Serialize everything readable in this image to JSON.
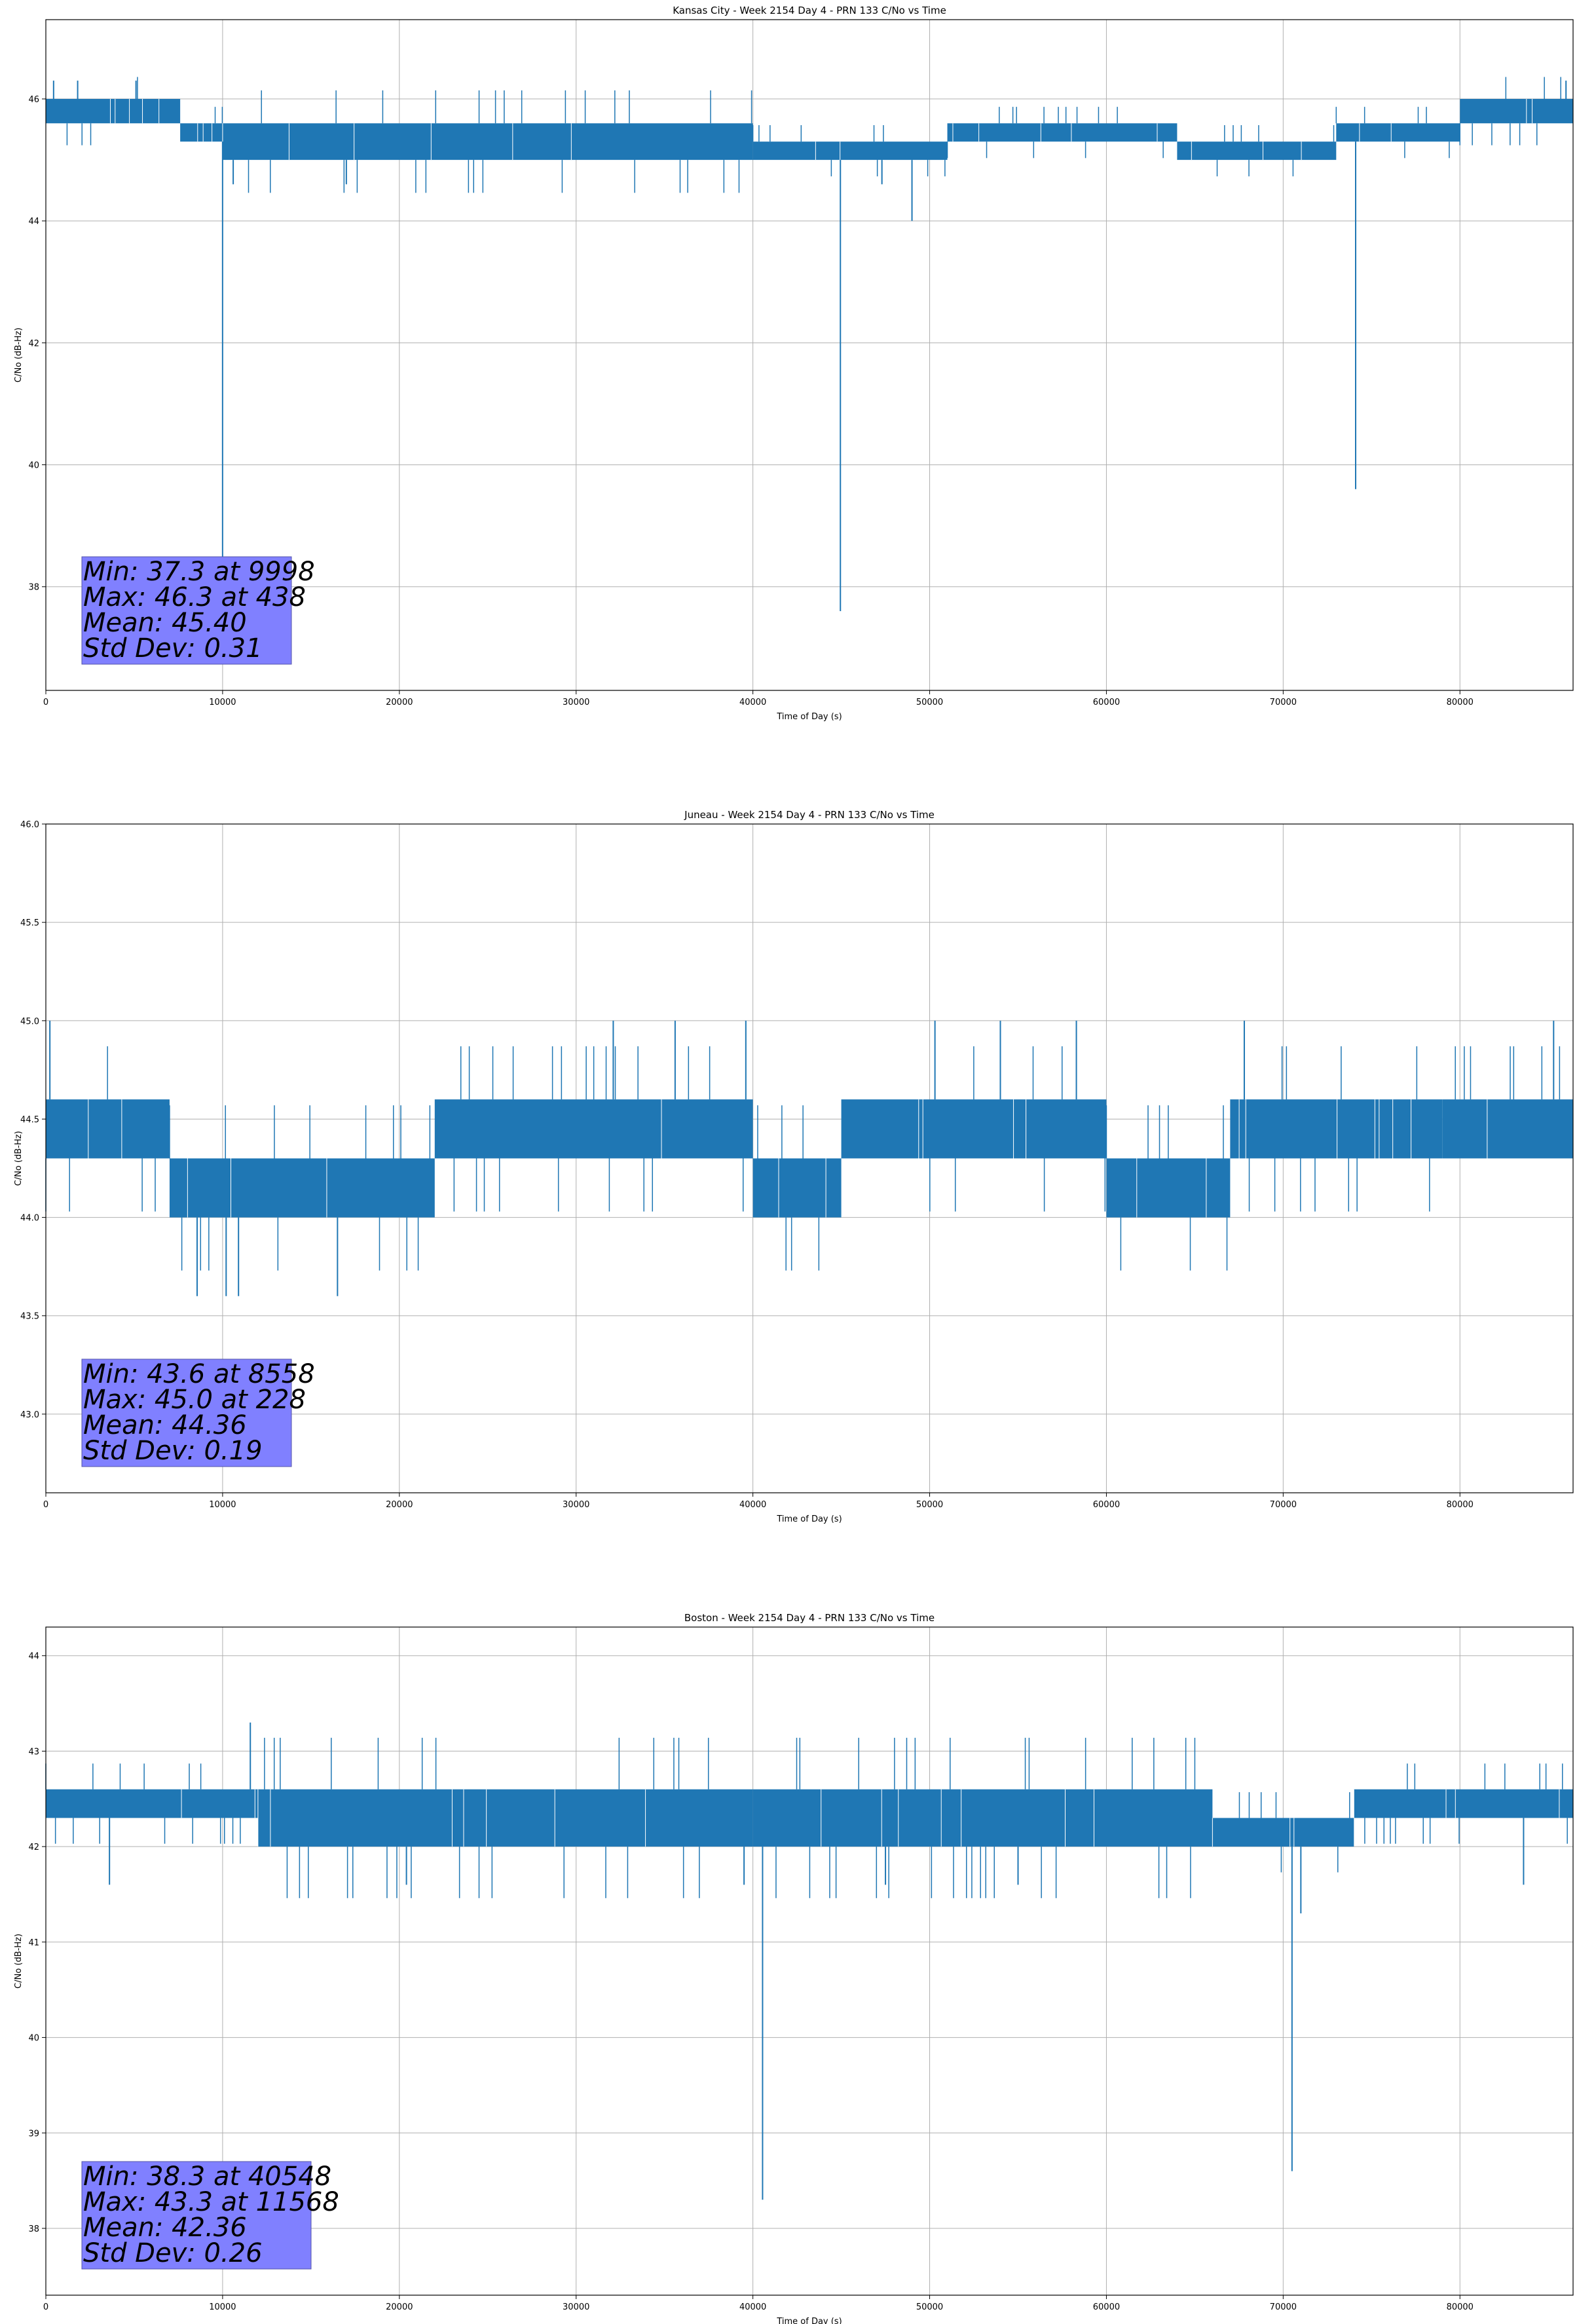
{
  "chart_data": [
    {
      "type": "line",
      "title": "Kansas City - Week 2154 Day 4 - PRN 133 C/No vs Time",
      "xlabel": "Time of Day (s)",
      "ylabel": "C/No (dB-Hz)",
      "xlim": [
        0,
        86400
      ],
      "ylim": [
        36.3,
        47.3
      ],
      "xticks": [
        0,
        10000,
        20000,
        30000,
        40000,
        50000,
        60000,
        70000,
        80000
      ],
      "yticks": [
        38,
        40,
        42,
        44,
        46
      ],
      "ytick_labels": [
        "38",
        "40",
        "42",
        "44",
        "46"
      ],
      "grid": true,
      "series_color": "#1f77b4",
      "bands": [
        {
          "x": [
            0,
            7600
          ],
          "y": [
            45.6,
            46.0
          ]
        },
        {
          "x": [
            7600,
            10000
          ],
          "y": [
            45.3,
            45.6
          ]
        },
        {
          "x": [
            10000,
            40000
          ],
          "y": [
            45.0,
            45.6
          ]
        },
        {
          "x": [
            40000,
            51000
          ],
          "y": [
            45.0,
            45.3
          ]
        },
        {
          "x": [
            51000,
            64000
          ],
          "y": [
            45.3,
            45.6
          ]
        },
        {
          "x": [
            64000,
            73000
          ],
          "y": [
            45.0,
            45.3
          ]
        },
        {
          "x": [
            73000,
            80000
          ],
          "y": [
            45.3,
            45.6
          ]
        },
        {
          "x": [
            80000,
            86400
          ],
          "y": [
            45.6,
            46.0
          ]
        }
      ],
      "spikes": [
        {
          "x": 9998,
          "y": 37.3
        },
        {
          "x": 44950,
          "y": 37.6
        },
        {
          "x": 74100,
          "y": 39.6
        },
        {
          "x": 438,
          "y": 46.3
        },
        {
          "x": 1800,
          "y": 46.3
        },
        {
          "x": 5100,
          "y": 46.3
        },
        {
          "x": 49000,
          "y": 44.0
        },
        {
          "x": 47300,
          "y": 44.6
        },
        {
          "x": 17000,
          "y": 44.6
        },
        {
          "x": 10600,
          "y": 44.6
        },
        {
          "x": 86000,
          "y": 46.3
        }
      ],
      "stats_box": {
        "lines": [
          "Min: 37.3 at 9998",
          "Max: 46.3 at 438",
          "Mean: 45.40",
          "Std Dev: 0.31"
        ],
        "color": "#8080ff"
      }
    },
    {
      "type": "line",
      "title": "Juneau - Week 2154 Day 4 - PRN 133 C/No vs Time",
      "xlabel": "Time of Day (s)",
      "ylabel": "C/No (dB-Hz)",
      "xlim": [
        0,
        86400
      ],
      "ylim": [
        42.6,
        46.0
      ],
      "xticks": [
        0,
        10000,
        20000,
        30000,
        40000,
        50000,
        60000,
        70000,
        80000
      ],
      "yticks": [
        43.0,
        43.5,
        44.0,
        44.5,
        45.0,
        45.5,
        46.0
      ],
      "ytick_labels": [
        "43.0",
        "43.5",
        "44.0",
        "44.5",
        "45.0",
        "45.5",
        "46.0"
      ],
      "grid": true,
      "series_color": "#1f77b4",
      "bands": [
        {
          "x": [
            0,
            7000
          ],
          "y": [
            44.3,
            44.6
          ]
        },
        {
          "x": [
            7000,
            22000
          ],
          "y": [
            44.0,
            44.3
          ]
        },
        {
          "x": [
            22000,
            40000
          ],
          "y": [
            44.3,
            44.6
          ]
        },
        {
          "x": [
            40000,
            45000
          ],
          "y": [
            44.0,
            44.3
          ]
        },
        {
          "x": [
            45000,
            60000
          ],
          "y": [
            44.3,
            44.6
          ]
        },
        {
          "x": [
            60000,
            67000
          ],
          "y": [
            44.0,
            44.3
          ]
        },
        {
          "x": [
            67000,
            79000
          ],
          "y": [
            44.3,
            44.6
          ]
        },
        {
          "x": [
            79000,
            86400
          ],
          "y": [
            44.3,
            44.6
          ]
        }
      ],
      "spikes": [
        {
          "x": 8558,
          "y": 43.6
        },
        {
          "x": 10200,
          "y": 43.6
        },
        {
          "x": 10900,
          "y": 43.6
        },
        {
          "x": 16500,
          "y": 43.6
        },
        {
          "x": 228,
          "y": 45.0
        },
        {
          "x": 32100,
          "y": 45.0
        },
        {
          "x": 35600,
          "y": 45.0
        },
        {
          "x": 39600,
          "y": 45.0
        },
        {
          "x": 50300,
          "y": 45.0
        },
        {
          "x": 54000,
          "y": 45.0
        },
        {
          "x": 58300,
          "y": 45.0
        },
        {
          "x": 67800,
          "y": 45.0
        },
        {
          "x": 85300,
          "y": 45.0
        }
      ],
      "stats_box": {
        "lines": [
          "Min: 43.6 at 8558",
          "Max: 45.0 at 228",
          "Mean: 44.36",
          "Std Dev: 0.19"
        ],
        "color": "#8080ff"
      }
    },
    {
      "type": "line",
      "title": "Boston - Week 2154 Day 4 - PRN 133 C/No vs Time",
      "xlabel": "Time of Day (s)",
      "ylabel": "C/No (dB-Hz)",
      "xlim": [
        0,
        86400
      ],
      "ylim": [
        37.3,
        44.3
      ],
      "xticks": [
        0,
        10000,
        20000,
        30000,
        40000,
        50000,
        60000,
        70000,
        80000
      ],
      "yticks": [
        38,
        39,
        40,
        41,
        42,
        43,
        44
      ],
      "ytick_labels": [
        "38",
        "39",
        "40",
        "41",
        "42",
        "43",
        "44"
      ],
      "grid": true,
      "series_color": "#1f77b4",
      "bands": [
        {
          "x": [
            0,
            12000
          ],
          "y": [
            42.3,
            42.6
          ]
        },
        {
          "x": [
            12000,
            40000
          ],
          "y": [
            42.0,
            42.6
          ]
        },
        {
          "x": [
            40000,
            66000
          ],
          "y": [
            42.0,
            42.6
          ]
        },
        {
          "x": [
            66000,
            74000
          ],
          "y": [
            42.0,
            42.3
          ]
        },
        {
          "x": [
            74000,
            86400
          ],
          "y": [
            42.3,
            42.6
          ]
        }
      ],
      "spikes": [
        {
          "x": 40548,
          "y": 38.3
        },
        {
          "x": 70500,
          "y": 38.6
        },
        {
          "x": 11568,
          "y": 43.3
        },
        {
          "x": 3600,
          "y": 41.6
        },
        {
          "x": 20400,
          "y": 41.6
        },
        {
          "x": 39500,
          "y": 41.6
        },
        {
          "x": 47500,
          "y": 41.6
        },
        {
          "x": 55000,
          "y": 41.6
        },
        {
          "x": 71000,
          "y": 41.3
        },
        {
          "x": 83600,
          "y": 41.6
        }
      ],
      "stats_box": {
        "lines": [
          "Min: 38.3 at 40548",
          "Max: 43.3 at 11568",
          "Mean: 42.36",
          "Std Dev: 0.26"
        ],
        "color": "#8080ff"
      }
    }
  ]
}
